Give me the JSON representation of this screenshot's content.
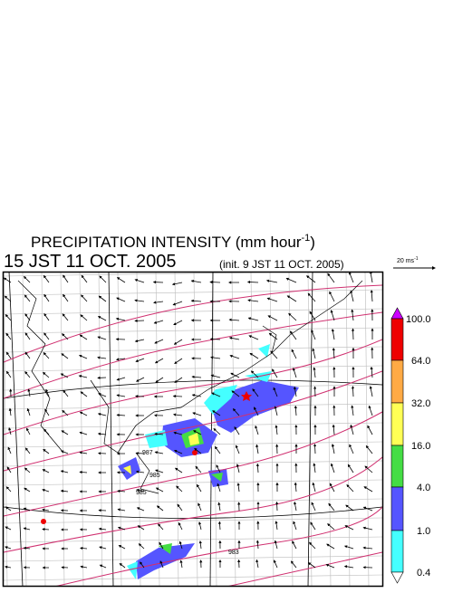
{
  "title": {
    "text": "PRECIPITATION INTENSITY (mm hour",
    "exponent": "-1",
    "close": ")"
  },
  "valid_time": "15 JST 11 OCT. 2005",
  "init_time": "(init. 9 JST 11 OCT. 2005)",
  "reference_vector": {
    "label": "20 ms",
    "exponent": "-1"
  },
  "colorbar": {
    "labels": [
      "100.0",
      "64.0",
      "32.0",
      "16.0",
      "4.0",
      "1.0",
      "0.4"
    ]
  },
  "contour_labels": [
    "987",
    "985",
    "985",
    "983"
  ]
}
